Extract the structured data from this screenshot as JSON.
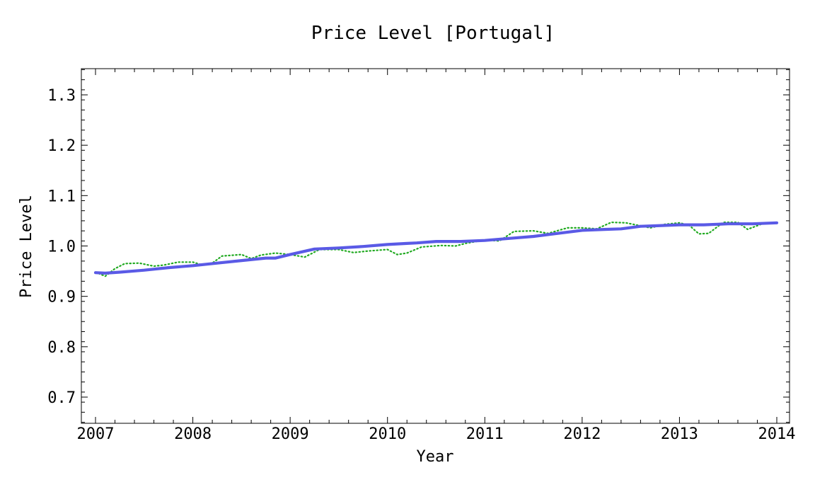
{
  "chart_data": {
    "type": "line",
    "title": "Price Level [Portugal]",
    "xlabel": "Year",
    "ylabel": "Price Level",
    "xlim": [
      2007.0,
      2014.0
    ],
    "ylim": [
      0.65,
      1.35
    ],
    "x_ticks": [
      2007,
      2008,
      2009,
      2010,
      2011,
      2012,
      2013,
      2014
    ],
    "x_tick_labels": [
      "2007",
      "2008",
      "2009",
      "2010",
      "2011",
      "2012",
      "2013",
      "2014"
    ],
    "y_ticks": [
      0.7,
      0.8,
      0.9,
      1.0,
      1.1,
      1.2,
      1.3
    ],
    "y_tick_labels": [
      "0.7",
      "0.8",
      "0.9",
      "1.0",
      "1.1",
      "1.2",
      "1.3"
    ],
    "grid": false,
    "series": [
      {
        "style": "solid",
        "color": "#5a5ae6",
        "x": [
          2007.0,
          2007.1,
          2007.25,
          2007.5,
          2007.75,
          2008.0,
          2008.25,
          2008.5,
          2008.75,
          2008.85,
          2009.0,
          2009.25,
          2009.5,
          2009.75,
          2010.0,
          2010.2,
          2010.3,
          2010.5,
          2010.75,
          2011.0,
          2011.25,
          2011.5,
          2011.75,
          2012.0,
          2012.25,
          2012.4,
          2012.6,
          2012.75,
          2013.0,
          2013.25,
          2013.5,
          2013.75,
          2014.0
        ],
        "values": [
          0.947,
          0.946,
          0.948,
          0.952,
          0.957,
          0.961,
          0.966,
          0.971,
          0.976,
          0.976,
          0.983,
          0.994,
          0.996,
          0.999,
          1.003,
          1.005,
          1.006,
          1.009,
          1.009,
          1.011,
          1.015,
          1.019,
          1.025,
          1.031,
          1.033,
          1.034,
          1.039,
          1.04,
          1.042,
          1.042,
          1.044,
          1.044,
          1.046
        ]
      },
      {
        "style": "dotted",
        "color": "#22aa22",
        "x": [
          2007.0,
          2007.1,
          2007.2,
          2007.3,
          2007.45,
          2007.6,
          2007.7,
          2007.85,
          2008.0,
          2008.1,
          2008.2,
          2008.3,
          2008.5,
          2008.6,
          2008.7,
          2008.85,
          2009.0,
          2009.15,
          2009.3,
          2009.5,
          2009.65,
          2009.8,
          2010.0,
          2010.1,
          2010.2,
          2010.35,
          2010.55,
          2010.7,
          2010.8,
          2011.0,
          2011.15,
          2011.3,
          2011.5,
          2011.65,
          2011.85,
          2012.0,
          2012.15,
          2012.3,
          2012.45,
          2012.6,
          2012.7,
          2012.85,
          2013.0,
          2013.1,
          2013.2,
          2013.3,
          2013.45,
          2013.6,
          2013.7,
          2013.85,
          2014.0
        ],
        "values": [
          0.948,
          0.94,
          0.955,
          0.965,
          0.966,
          0.96,
          0.962,
          0.968,
          0.968,
          0.962,
          0.966,
          0.98,
          0.983,
          0.975,
          0.982,
          0.986,
          0.983,
          0.978,
          0.993,
          0.993,
          0.987,
          0.99,
          0.993,
          0.983,
          0.986,
          0.998,
          1.001,
          1.0,
          1.005,
          1.012,
          1.01,
          1.029,
          1.03,
          1.025,
          1.036,
          1.036,
          1.034,
          1.047,
          1.046,
          1.04,
          1.036,
          1.043,
          1.046,
          1.041,
          1.024,
          1.025,
          1.047,
          1.047,
          1.033,
          1.044,
          1.046
        ]
      }
    ]
  }
}
